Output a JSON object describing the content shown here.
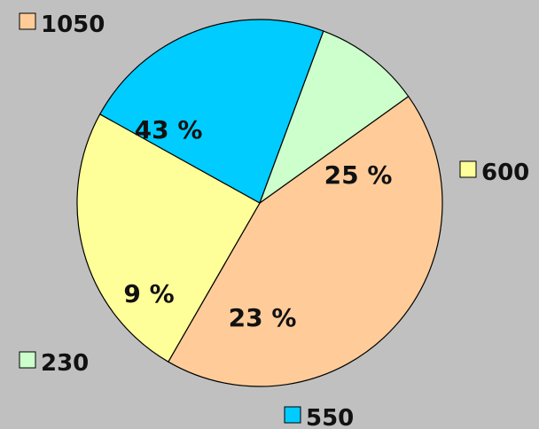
{
  "chart_data": {
    "type": "pie",
    "slices": [
      {
        "value": 1050,
        "percent_label": "43 %",
        "legend_label": "1050",
        "color": "#ffcc99"
      },
      {
        "value": 600,
        "percent_label": "25 %",
        "legend_label": "600",
        "color": "#ffff99"
      },
      {
        "value": 550,
        "percent_label": "23 %",
        "legend_label": "550",
        "color": "#00ccff"
      },
      {
        "value": 230,
        "percent_label": "9 %",
        "legend_label": "230",
        "color": "#ccffcc"
      }
    ],
    "background": "#c0c0c0",
    "outline_color": "#000000"
  }
}
